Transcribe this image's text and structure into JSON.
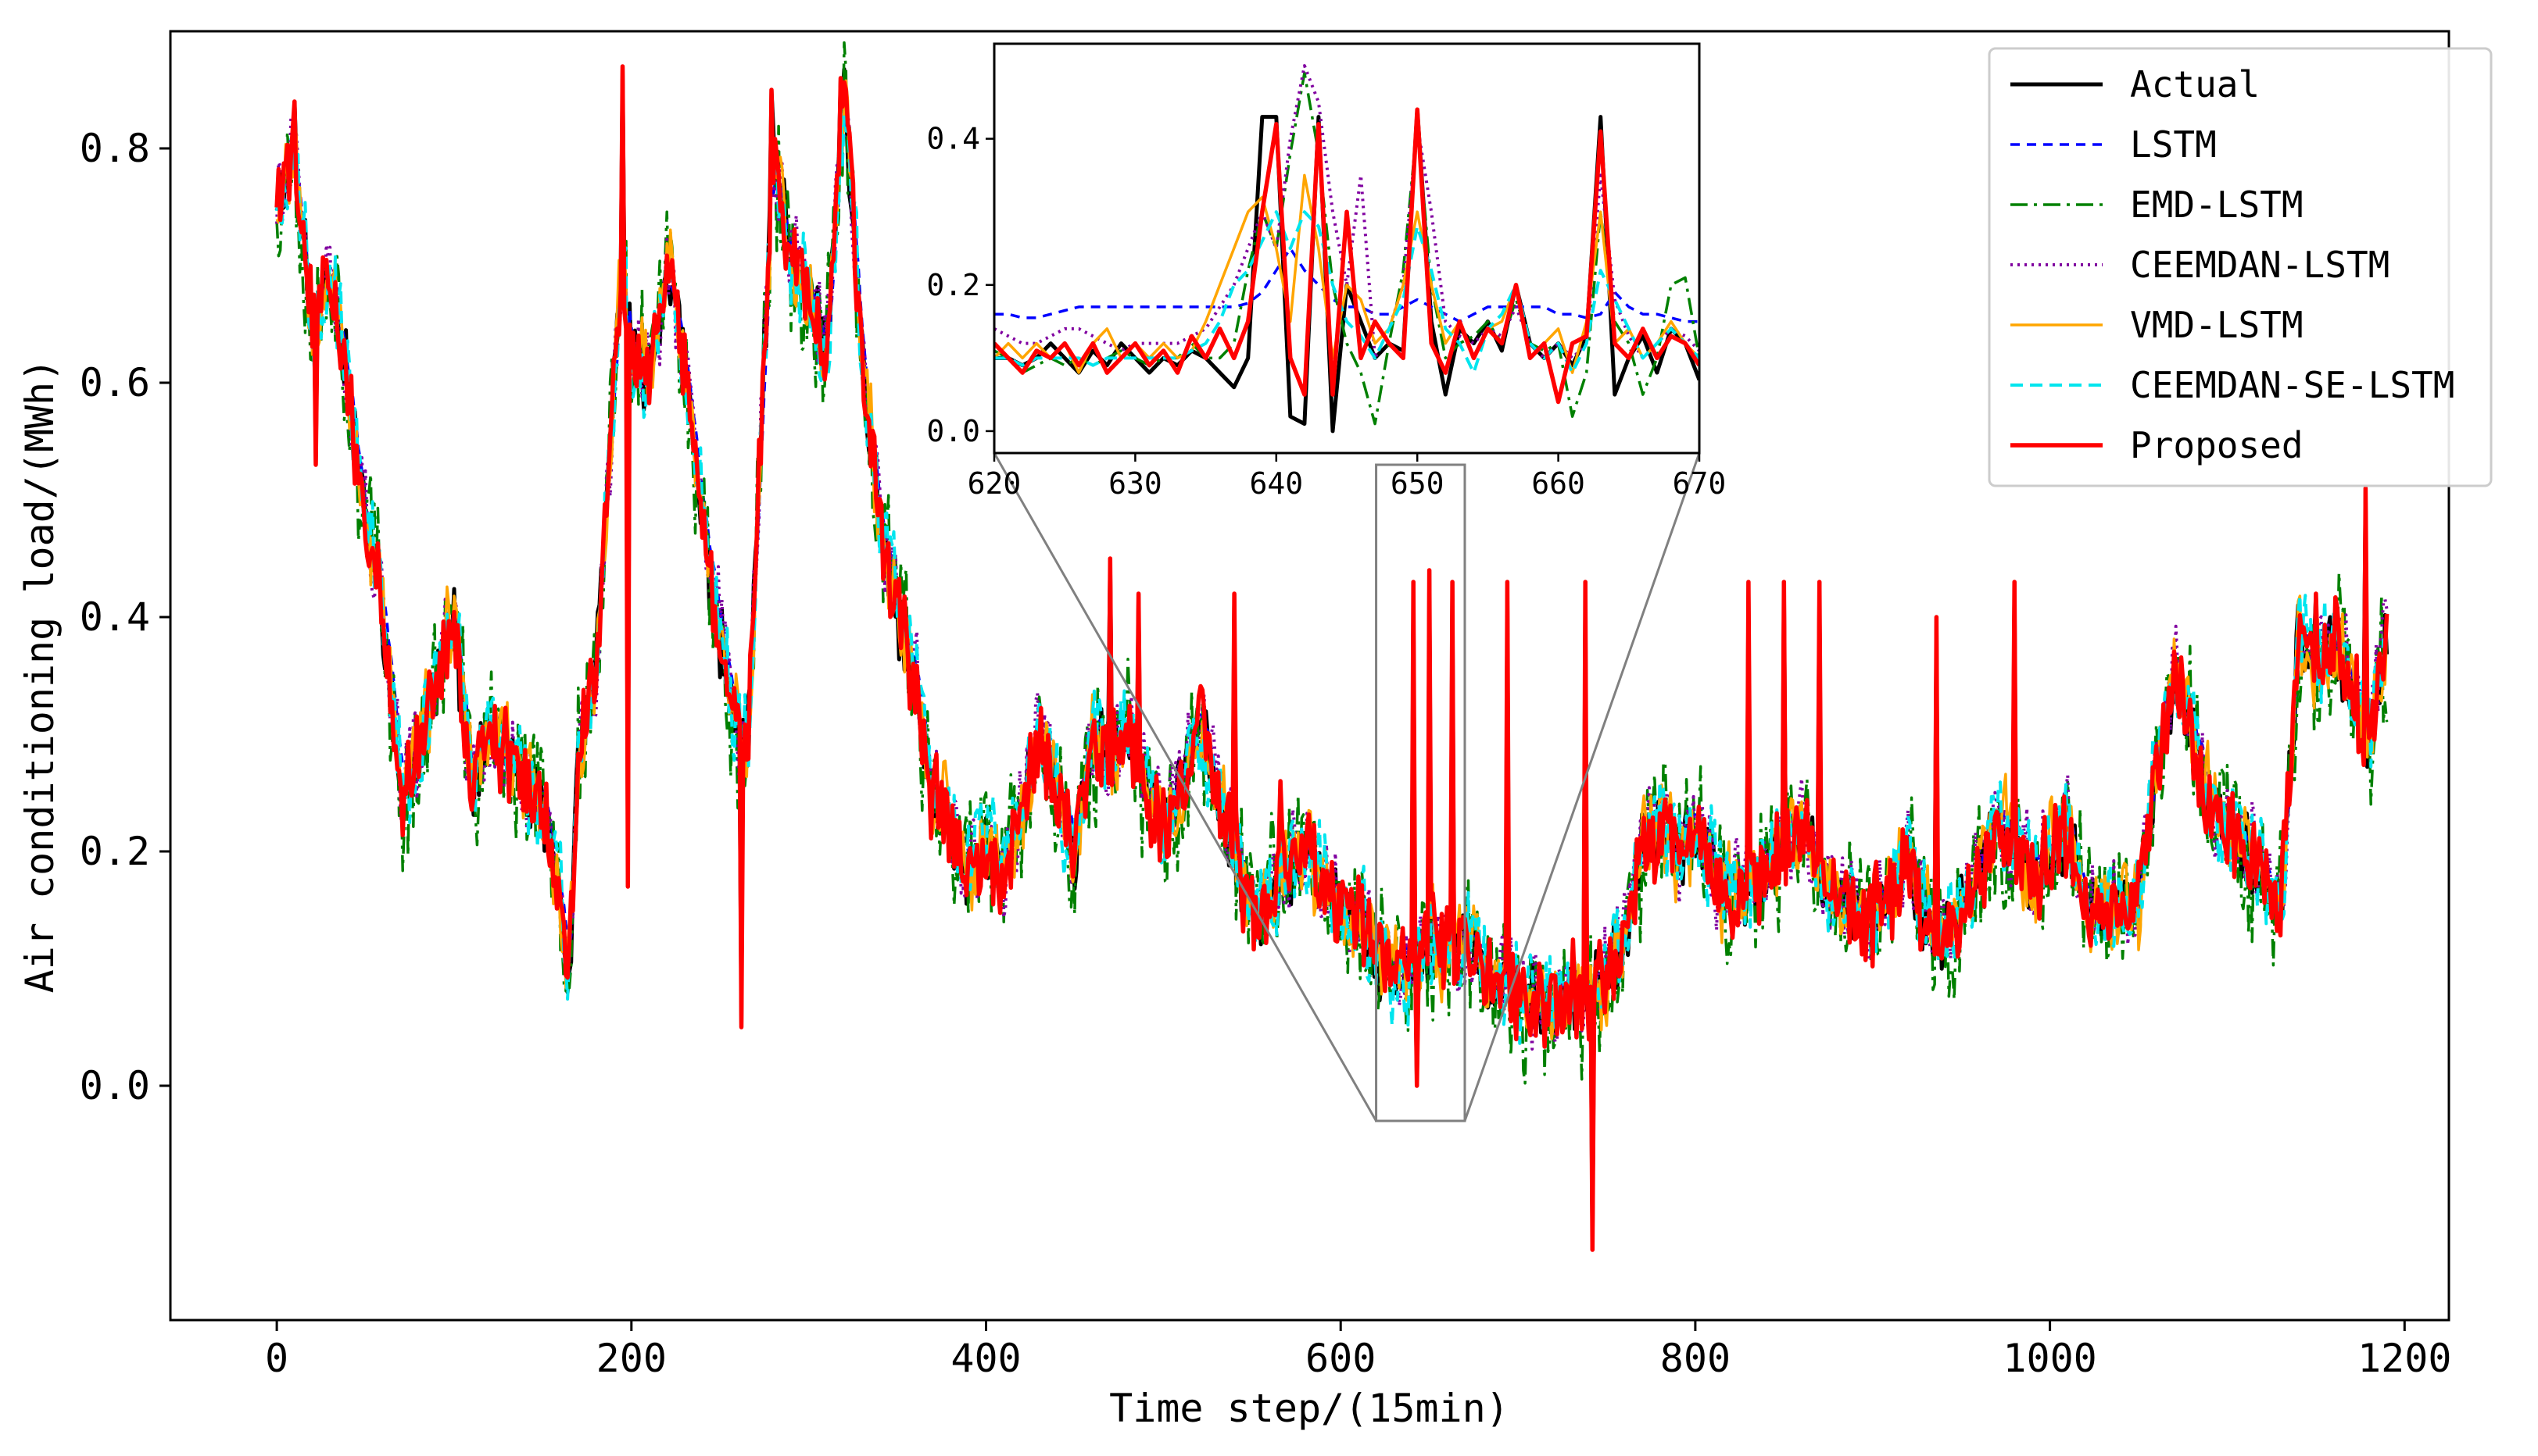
{
  "chart_data": {
    "type": "line",
    "xlabel": "Time step/(15min)",
    "ylabel": "Air conditioning load/(MWh)",
    "xlim": [
      -60,
      1225
    ],
    "ylim": [
      -0.2,
      0.9
    ],
    "x_ticks": [
      0,
      200,
      400,
      600,
      800,
      1000,
      1200
    ],
    "y_ticks": [
      0.0,
      0.2,
      0.4,
      0.6,
      0.8
    ],
    "x_tick_labels": [
      "0",
      "200",
      "400",
      "600",
      "800",
      "1000",
      "1200"
    ],
    "y_tick_labels": [
      "0.0",
      "0.2",
      "0.4",
      "0.6",
      "0.8"
    ],
    "grid": false,
    "legend_position": "top-right",
    "anchor_x": [
      0,
      10,
      20,
      30,
      40,
      50,
      60,
      70,
      80,
      90,
      100,
      110,
      120,
      130,
      140,
      150,
      160,
      165,
      170,
      180,
      190,
      195,
      200,
      210,
      220,
      230,
      240,
      250,
      260,
      265,
      270,
      280,
      290,
      300,
      310,
      320,
      330,
      340,
      350,
      360,
      370,
      380,
      390,
      400,
      410,
      420,
      430,
      440,
      450,
      460,
      470,
      480,
      490,
      500,
      510,
      520,
      530,
      540,
      550,
      560,
      570,
      580,
      590,
      600,
      610,
      620,
      630,
      640,
      650,
      660,
      670,
      680,
      690,
      700,
      710,
      720,
      730,
      740,
      750,
      760,
      770,
      780,
      790,
      800,
      810,
      820,
      830,
      840,
      850,
      860,
      870,
      880,
      890,
      900,
      910,
      920,
      930,
      940,
      950,
      960,
      970,
      980,
      990,
      1000,
      1010,
      1020,
      1030,
      1040,
      1050,
      1060,
      1070,
      1080,
      1090,
      1100,
      1110,
      1120,
      1130,
      1140,
      1150,
      1160,
      1170,
      1180,
      1190
    ],
    "actual_anchor": [
      0.76,
      0.79,
      0.65,
      0.7,
      0.6,
      0.48,
      0.4,
      0.25,
      0.28,
      0.35,
      0.4,
      0.25,
      0.3,
      0.28,
      0.25,
      0.24,
      0.15,
      0.1,
      0.28,
      0.35,
      0.6,
      0.72,
      0.62,
      0.6,
      0.7,
      0.62,
      0.48,
      0.38,
      0.3,
      0.28,
      0.45,
      0.8,
      0.7,
      0.68,
      0.62,
      0.85,
      0.62,
      0.48,
      0.4,
      0.34,
      0.24,
      0.22,
      0.18,
      0.2,
      0.18,
      0.23,
      0.3,
      0.25,
      0.2,
      0.3,
      0.28,
      0.3,
      0.25,
      0.22,
      0.25,
      0.31,
      0.25,
      0.2,
      0.15,
      0.16,
      0.18,
      0.2,
      0.17,
      0.15,
      0.15,
      0.11,
      0.1,
      0.1,
      0.13,
      0.11,
      0.12,
      0.1,
      0.08,
      0.08,
      0.07,
      0.07,
      0.08,
      0.07,
      0.09,
      0.12,
      0.2,
      0.22,
      0.2,
      0.22,
      0.18,
      0.16,
      0.17,
      0.18,
      0.2,
      0.22,
      0.18,
      0.16,
      0.15,
      0.14,
      0.16,
      0.2,
      0.14,
      0.12,
      0.15,
      0.18,
      0.22,
      0.2,
      0.18,
      0.2,
      0.22,
      0.16,
      0.14,
      0.16,
      0.15,
      0.27,
      0.35,
      0.3,
      0.24,
      0.22,
      0.2,
      0.18,
      0.15,
      0.38,
      0.36,
      0.38,
      0.33,
      0.3,
      0.38
    ],
    "series": [
      {
        "name": "Actual",
        "color": "#000000",
        "dash": "",
        "lw": 5,
        "noise": 0.015,
        "bias": 0.0,
        "smooth": 0.0,
        "seed": 11
      },
      {
        "name": "LSTM",
        "color": "#0000ff",
        "dash": "12,9",
        "lw": 3.5,
        "noise": 0.005,
        "bias": 0.03,
        "smooth": 0.55,
        "seed": 23
      },
      {
        "name": "EMD-LSTM",
        "color": "#008000",
        "dash": "22,8,4,8",
        "lw": 3.5,
        "noise": 0.035,
        "bias": -0.005,
        "smooth": 0.1,
        "seed": 37
      },
      {
        "name": "CEEMDAN-LSTM",
        "color": "#8000a0",
        "dash": "3,6",
        "lw": 4,
        "noise": 0.025,
        "bias": 0.01,
        "smooth": 0.2,
        "seed": 41
      },
      {
        "name": "VMD-LSTM",
        "color": "#ffa500",
        "dash": "",
        "lw": 3.5,
        "noise": 0.025,
        "bias": 0.005,
        "smooth": 0.25,
        "seed": 53
      },
      {
        "name": "CEEMDAN-SE-LSTM",
        "color": "#00e5ee",
        "dash": "16,9",
        "lw": 4,
        "noise": 0.025,
        "bias": 0.012,
        "smooth": 0.2,
        "seed": 67
      },
      {
        "name": "Proposed",
        "color": "#ff0000",
        "dash": "",
        "lw": 5.5,
        "noise": 0.02,
        "bias": 0.0,
        "smooth": 0.05,
        "seed": 79
      }
    ],
    "spikes": [
      [
        10,
        0.84
      ],
      [
        22,
        0.53
      ],
      [
        195,
        0.87
      ],
      [
        198,
        0.17
      ],
      [
        262,
        0.05
      ],
      [
        279,
        0.85
      ],
      [
        318,
        0.86
      ],
      [
        470,
        0.45
      ],
      [
        486,
        0.42
      ],
      [
        540,
        0.42
      ],
      [
        566,
        0.26
      ],
      [
        641,
        0.43
      ],
      [
        643,
        0.0
      ],
      [
        650,
        0.44
      ],
      [
        663,
        0.43
      ],
      [
        694,
        0.43
      ],
      [
        738,
        0.43
      ],
      [
        742,
        -0.14
      ],
      [
        830,
        0.43
      ],
      [
        850,
        0.43
      ],
      [
        870,
        0.43
      ],
      [
        936,
        0.4
      ],
      [
        980,
        0.43
      ],
      [
        1150,
        0.42
      ],
      [
        1178,
        0.51
      ]
    ],
    "inset": {
      "xlim": [
        620,
        670
      ],
      "ylim": [
        -0.03,
        0.53
      ],
      "x_ticks": [
        620,
        630,
        640,
        650,
        660,
        670
      ],
      "y_ticks": [
        0.0,
        0.2,
        0.4
      ],
      "x_tick_labels": [
        "620",
        "630",
        "640",
        "650",
        "660",
        "670"
      ],
      "y_tick_labels": [
        "0.0",
        "0.2",
        "0.4"
      ],
      "zoom_box_xlim": [
        620,
        670
      ],
      "zoom_box_ylim": [
        -0.03,
        0.53
      ],
      "series_values": {
        "Actual": [
          0.1,
          0.1,
          0.09,
          0.1,
          0.12,
          0.1,
          0.08,
          0.11,
          0.09,
          0.12,
          0.1,
          0.08,
          0.1,
          0.09,
          0.11,
          0.1,
          0.08,
          0.06,
          0.1,
          0.43,
          0.43,
          0.02,
          0.01,
          0.43,
          0.0,
          0.2,
          0.15,
          0.1,
          0.12,
          0.11,
          0.44,
          0.15,
          0.05,
          0.14,
          0.12,
          0.15,
          0.11,
          0.2,
          0.12,
          0.1,
          0.12,
          0.09,
          0.13,
          0.43,
          0.05,
          0.1,
          0.13,
          0.08,
          0.14,
          0.12,
          0.07
        ],
        "LSTM": [
          0.16,
          0.16,
          0.155,
          0.155,
          0.16,
          0.165,
          0.17,
          0.17,
          0.17,
          0.17,
          0.17,
          0.17,
          0.17,
          0.17,
          0.17,
          0.17,
          0.17,
          0.17,
          0.175,
          0.19,
          0.22,
          0.25,
          0.22,
          0.2,
          0.18,
          0.17,
          0.17,
          0.16,
          0.16,
          0.17,
          0.18,
          0.17,
          0.16,
          0.15,
          0.16,
          0.17,
          0.17,
          0.17,
          0.17,
          0.17,
          0.16,
          0.16,
          0.155,
          0.16,
          0.19,
          0.17,
          0.16,
          0.16,
          0.155,
          0.15,
          0.15
        ],
        "EMD-LSTM": [
          0.11,
          0.1,
          0.08,
          0.09,
          0.1,
          0.09,
          0.1,
          0.09,
          0.1,
          0.11,
          0.1,
          0.09,
          0.1,
          0.1,
          0.12,
          0.1,
          0.1,
          0.12,
          0.22,
          0.3,
          0.25,
          0.38,
          0.49,
          0.38,
          0.2,
          0.12,
          0.08,
          0.01,
          0.12,
          0.22,
          0.42,
          0.2,
          0.1,
          0.12,
          0.13,
          0.15,
          0.12,
          0.18,
          0.12,
          0.11,
          0.12,
          0.02,
          0.08,
          0.3,
          0.15,
          0.12,
          0.05,
          0.1,
          0.2,
          0.21,
          0.1
        ],
        "CEEMDAN-LSTM": [
          0.14,
          0.13,
          0.12,
          0.12,
          0.13,
          0.14,
          0.14,
          0.13,
          0.12,
          0.11,
          0.12,
          0.12,
          0.12,
          0.12,
          0.13,
          0.14,
          0.17,
          0.2,
          0.25,
          0.3,
          0.25,
          0.4,
          0.5,
          0.45,
          0.3,
          0.2,
          0.35,
          0.1,
          0.14,
          0.2,
          0.42,
          0.3,
          0.15,
          0.13,
          0.12,
          0.14,
          0.13,
          0.17,
          0.12,
          0.1,
          0.12,
          0.1,
          0.12,
          0.35,
          0.18,
          0.13,
          0.1,
          0.12,
          0.14,
          0.13,
          0.11
        ],
        "VMD-LSTM": [
          0.1,
          0.12,
          0.1,
          0.12,
          0.1,
          0.12,
          0.08,
          0.12,
          0.14,
          0.1,
          0.12,
          0.1,
          0.12,
          0.1,
          0.11,
          0.15,
          0.2,
          0.25,
          0.3,
          0.32,
          0.25,
          0.15,
          0.35,
          0.25,
          0.1,
          0.2,
          0.18,
          0.12,
          0.14,
          0.2,
          0.3,
          0.2,
          0.12,
          0.15,
          0.1,
          0.14,
          0.15,
          0.2,
          0.1,
          0.12,
          0.14,
          0.08,
          0.15,
          0.3,
          0.12,
          0.14,
          0.1,
          0.12,
          0.15,
          0.12,
          0.1
        ],
        "CEEMDAN-SE-LSTM": [
          0.1,
          0.1,
          0.09,
          0.1,
          0.1,
          0.1,
          0.1,
          0.09,
          0.1,
          0.1,
          0.1,
          0.1,
          0.1,
          0.1,
          0.11,
          0.12,
          0.15,
          0.2,
          0.22,
          0.26,
          0.3,
          0.25,
          0.3,
          0.28,
          0.2,
          0.15,
          0.13,
          0.1,
          0.14,
          0.18,
          0.28,
          0.22,
          0.14,
          0.12,
          0.08,
          0.14,
          0.16,
          0.2,
          0.12,
          0.1,
          0.12,
          0.08,
          0.12,
          0.22,
          0.18,
          0.14,
          0.1,
          0.12,
          0.14,
          0.12,
          0.1
        ],
        "Proposed": [
          0.12,
          0.1,
          0.08,
          0.11,
          0.1,
          0.12,
          0.09,
          0.12,
          0.08,
          0.1,
          0.12,
          0.09,
          0.11,
          0.08,
          0.13,
          0.1,
          0.14,
          0.1,
          0.15,
          0.3,
          0.42,
          0.1,
          0.05,
          0.42,
          0.05,
          0.3,
          0.1,
          0.15,
          0.12,
          0.1,
          0.44,
          0.12,
          0.08,
          0.15,
          0.1,
          0.14,
          0.12,
          0.2,
          0.1,
          0.12,
          0.04,
          0.12,
          0.13,
          0.41,
          0.12,
          0.1,
          0.14,
          0.1,
          0.13,
          0.12,
          0.09
        ]
      }
    }
  }
}
